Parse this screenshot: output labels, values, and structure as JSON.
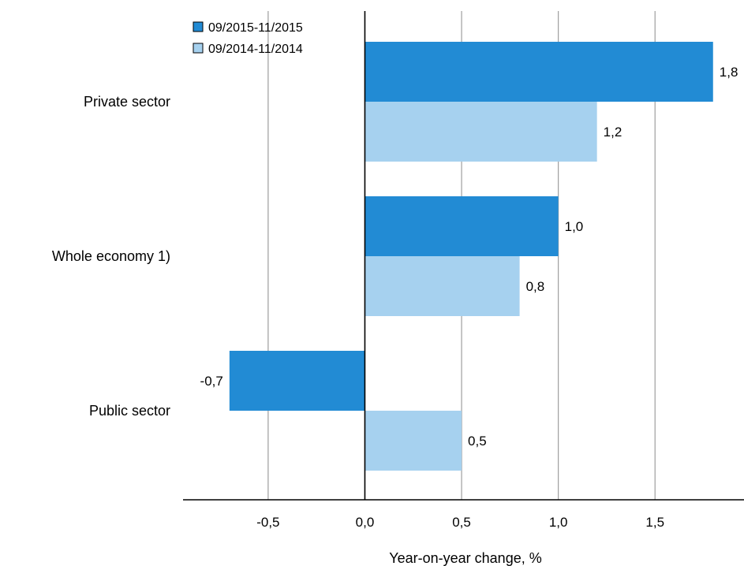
{
  "chart_data": {
    "type": "bar",
    "orientation": "horizontal",
    "categories": [
      "Private sector",
      "Whole economy 1)",
      "Public sector"
    ],
    "series": [
      {
        "name": "09/2015-11/2015",
        "values": [
          1.8,
          1.0,
          -0.7
        ],
        "labels": [
          "1,8",
          "1,0",
          "-0,7"
        ]
      },
      {
        "name": "09/2014-11/2014",
        "values": [
          1.2,
          0.8,
          0.5
        ],
        "labels": [
          "1,2",
          "0,8",
          "0,5"
        ]
      }
    ],
    "xlabel": "Year-on-year change, %",
    "xlim": [
      -0.94,
      1.96
    ],
    "ticks": [
      -0.5,
      0.0,
      0.5,
      1.0,
      1.5
    ],
    "tick_labels": [
      "-0,5",
      "0,0",
      "0,5",
      "1,0",
      "1,5"
    ],
    "grid": "vertical",
    "legend": "top-left",
    "colors": {
      "series1": "#228BD4",
      "series2": "#A6D1EF",
      "grid": "#9E9E9E",
      "axis": "#000000"
    }
  }
}
